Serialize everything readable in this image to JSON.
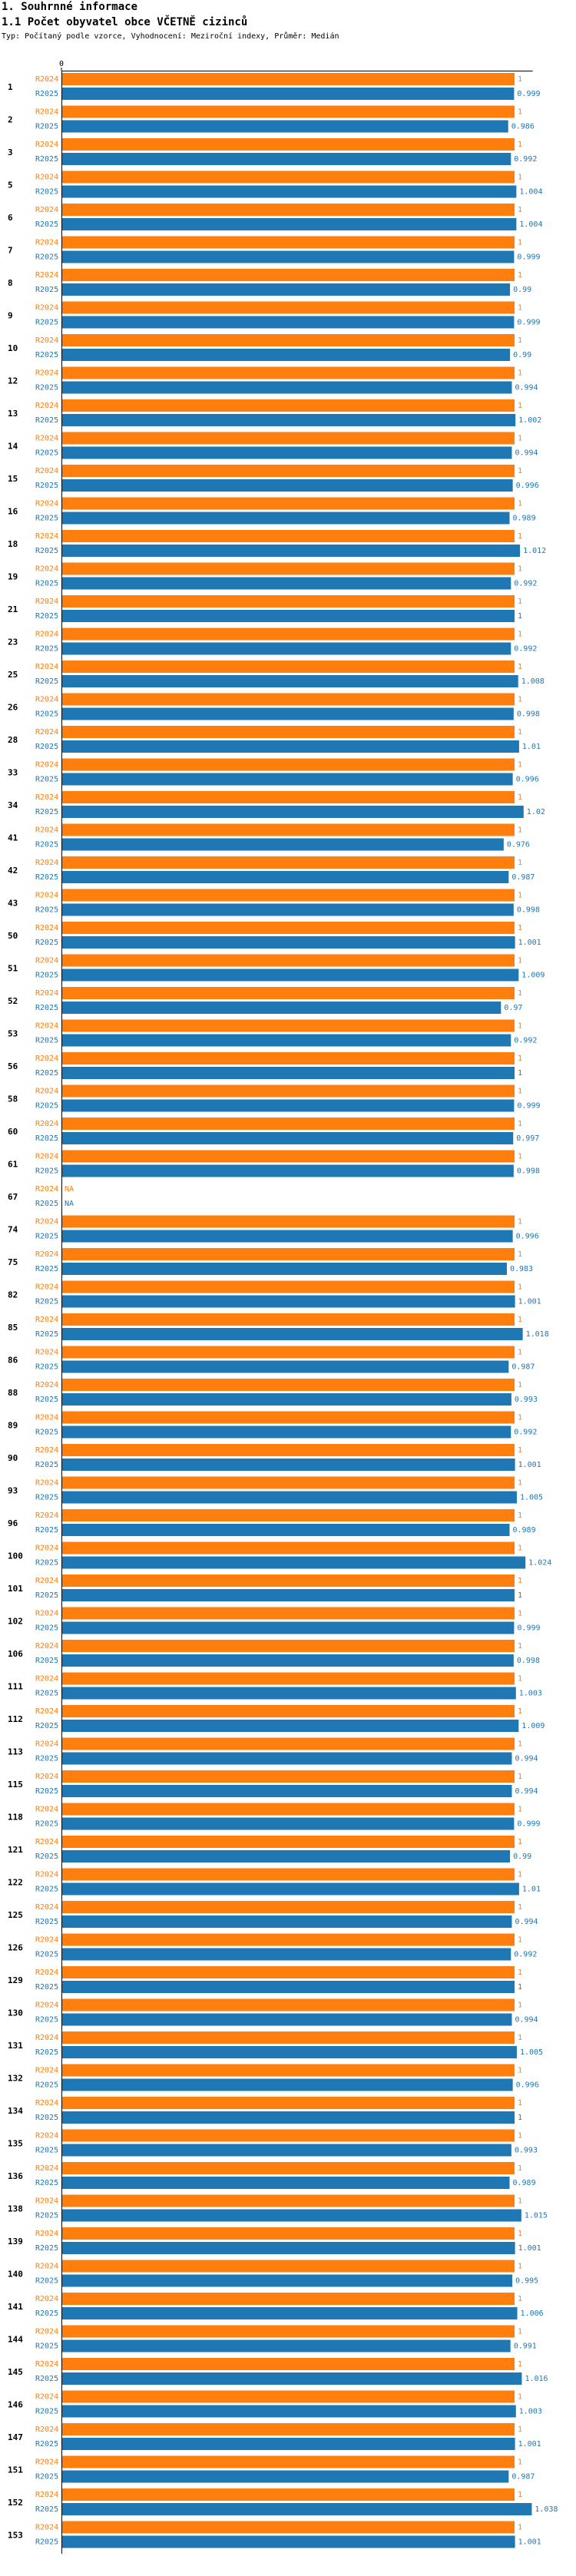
{
  "header": {
    "section": "1. Souhrnné informace",
    "title": "1.1 Počet obyvatel obce VČETNĚ cizinců",
    "subtitle": "Typ: Počítaný podle vzorce, Vyhodnocení: Meziroční indexy, Průměr: Medián"
  },
  "colors": {
    "r2024": "#ff7f0e",
    "r2025": "#1f77b4"
  },
  "chart_data": {
    "type": "bar",
    "orientation": "horizontal",
    "title": "1.1 Počet obyvatel obce VČETNĚ cizinců",
    "x_tick_labels": [
      "0"
    ],
    "xlim": [
      0,
      1.04
    ],
    "series_names": [
      "R2024",
      "R2025"
    ],
    "groups": [
      {
        "label": "1",
        "r2024": 1,
        "r2025": 0.999,
        "r2024_text": "1",
        "r2025_text": "0.999"
      },
      {
        "label": "2",
        "r2024": 1,
        "r2025": 0.986,
        "r2024_text": "1",
        "r2025_text": "0.986"
      },
      {
        "label": "3",
        "r2024": 1,
        "r2025": 0.992,
        "r2024_text": "1",
        "r2025_text": "0.992"
      },
      {
        "label": "5",
        "r2024": 1,
        "r2025": 1.004,
        "r2024_text": "1",
        "r2025_text": "1.004"
      },
      {
        "label": "6",
        "r2024": 1,
        "r2025": 1.004,
        "r2024_text": "1",
        "r2025_text": "1.004"
      },
      {
        "label": "7",
        "r2024": 1,
        "r2025": 0.999,
        "r2024_text": "1",
        "r2025_text": "0.999"
      },
      {
        "label": "8",
        "r2024": 1,
        "r2025": 0.99,
        "r2024_text": "1",
        "r2025_text": "0.99"
      },
      {
        "label": "9",
        "r2024": 1,
        "r2025": 0.999,
        "r2024_text": "1",
        "r2025_text": "0.999"
      },
      {
        "label": "10",
        "r2024": 1,
        "r2025": 0.99,
        "r2024_text": "1",
        "r2025_text": "0.99"
      },
      {
        "label": "12",
        "r2024": 1,
        "r2025": 0.994,
        "r2024_text": "1",
        "r2025_text": "0.994"
      },
      {
        "label": "13",
        "r2024": 1,
        "r2025": 1.002,
        "r2024_text": "1",
        "r2025_text": "1.002"
      },
      {
        "label": "14",
        "r2024": 1,
        "r2025": 0.994,
        "r2024_text": "1",
        "r2025_text": "0.994"
      },
      {
        "label": "15",
        "r2024": 1,
        "r2025": 0.996,
        "r2024_text": "1",
        "r2025_text": "0.996"
      },
      {
        "label": "16",
        "r2024": 1,
        "r2025": 0.989,
        "r2024_text": "1",
        "r2025_text": "0.989"
      },
      {
        "label": "18",
        "r2024": 1,
        "r2025": 1.012,
        "r2024_text": "1",
        "r2025_text": "1.012"
      },
      {
        "label": "19",
        "r2024": 1,
        "r2025": 0.992,
        "r2024_text": "1",
        "r2025_text": "0.992"
      },
      {
        "label": "21",
        "r2024": 1,
        "r2025": 1,
        "r2024_text": "1",
        "r2025_text": "1"
      },
      {
        "label": "23",
        "r2024": 1,
        "r2025": 0.992,
        "r2024_text": "1",
        "r2025_text": "0.992"
      },
      {
        "label": "25",
        "r2024": 1,
        "r2025": 1.008,
        "r2024_text": "1",
        "r2025_text": "1.008"
      },
      {
        "label": "26",
        "r2024": 1,
        "r2025": 0.998,
        "r2024_text": "1",
        "r2025_text": "0.998"
      },
      {
        "label": "28",
        "r2024": 1,
        "r2025": 1.01,
        "r2024_text": "1",
        "r2025_text": "1.01"
      },
      {
        "label": "33",
        "r2024": 1,
        "r2025": 0.996,
        "r2024_text": "1",
        "r2025_text": "0.996"
      },
      {
        "label": "34",
        "r2024": 1,
        "r2025": 1.02,
        "r2024_text": "1",
        "r2025_text": "1.02"
      },
      {
        "label": "41",
        "r2024": 1,
        "r2025": 0.976,
        "r2024_text": "1",
        "r2025_text": "0.976"
      },
      {
        "label": "42",
        "r2024": 1,
        "r2025": 0.987,
        "r2024_text": "1",
        "r2025_text": "0.987"
      },
      {
        "label": "43",
        "r2024": 1,
        "r2025": 0.998,
        "r2024_text": "1",
        "r2025_text": "0.998"
      },
      {
        "label": "50",
        "r2024": 1,
        "r2025": 1.001,
        "r2024_text": "1",
        "r2025_text": "1.001"
      },
      {
        "label": "51",
        "r2024": 1,
        "r2025": 1.009,
        "r2024_text": "1",
        "r2025_text": "1.009"
      },
      {
        "label": "52",
        "r2024": 1,
        "r2025": 0.97,
        "r2024_text": "1",
        "r2025_text": "0.97"
      },
      {
        "label": "53",
        "r2024": 1,
        "r2025": 0.992,
        "r2024_text": "1",
        "r2025_text": "0.992"
      },
      {
        "label": "56",
        "r2024": 1,
        "r2025": 1,
        "r2024_text": "1",
        "r2025_text": "1"
      },
      {
        "label": "58",
        "r2024": 1,
        "r2025": 0.999,
        "r2024_text": "1",
        "r2025_text": "0.999"
      },
      {
        "label": "60",
        "r2024": 1,
        "r2025": 0.997,
        "r2024_text": "1",
        "r2025_text": "0.997"
      },
      {
        "label": "61",
        "r2024": 1,
        "r2025": 0.998,
        "r2024_text": "1",
        "r2025_text": "0.998"
      },
      {
        "label": "67",
        "r2024": null,
        "r2025": null,
        "r2024_text": "NA",
        "r2025_text": "NA"
      },
      {
        "label": "74",
        "r2024": 1,
        "r2025": 0.996,
        "r2024_text": "1",
        "r2025_text": "0.996"
      },
      {
        "label": "75",
        "r2024": 1,
        "r2025": 0.983,
        "r2024_text": "1",
        "r2025_text": "0.983"
      },
      {
        "label": "82",
        "r2024": 1,
        "r2025": 1.001,
        "r2024_text": "1",
        "r2025_text": "1.001"
      },
      {
        "label": "85",
        "r2024": 1,
        "r2025": 1.018,
        "r2024_text": "1",
        "r2025_text": "1.018"
      },
      {
        "label": "86",
        "r2024": 1,
        "r2025": 0.987,
        "r2024_text": "1",
        "r2025_text": "0.987"
      },
      {
        "label": "88",
        "r2024": 1,
        "r2025": 0.993,
        "r2024_text": "1",
        "r2025_text": "0.993"
      },
      {
        "label": "89",
        "r2024": 1,
        "r2025": 0.992,
        "r2024_text": "1",
        "r2025_text": "0.992"
      },
      {
        "label": "90",
        "r2024": 1,
        "r2025": 1.001,
        "r2024_text": "1",
        "r2025_text": "1.001"
      },
      {
        "label": "93",
        "r2024": 1,
        "r2025": 1.005,
        "r2024_text": "1",
        "r2025_text": "1.005"
      },
      {
        "label": "96",
        "r2024": 1,
        "r2025": 0.989,
        "r2024_text": "1",
        "r2025_text": "0.989"
      },
      {
        "label": "100",
        "r2024": 1,
        "r2025": 1.024,
        "r2024_text": "1",
        "r2025_text": "1.024"
      },
      {
        "label": "101",
        "r2024": 1,
        "r2025": 1,
        "r2024_text": "1",
        "r2025_text": "1"
      },
      {
        "label": "102",
        "r2024": 1,
        "r2025": 0.999,
        "r2024_text": "1",
        "r2025_text": "0.999"
      },
      {
        "label": "106",
        "r2024": 1,
        "r2025": 0.998,
        "r2024_text": "1",
        "r2025_text": "0.998"
      },
      {
        "label": "111",
        "r2024": 1,
        "r2025": 1.003,
        "r2024_text": "1",
        "r2025_text": "1.003"
      },
      {
        "label": "112",
        "r2024": 1,
        "r2025": 1.009,
        "r2024_text": "1",
        "r2025_text": "1.009"
      },
      {
        "label": "113",
        "r2024": 1,
        "r2025": 0.994,
        "r2024_text": "1",
        "r2025_text": "0.994"
      },
      {
        "label": "115",
        "r2024": 1,
        "r2025": 0.994,
        "r2024_text": "1",
        "r2025_text": "0.994"
      },
      {
        "label": "118",
        "r2024": 1,
        "r2025": 0.999,
        "r2024_text": "1",
        "r2025_text": "0.999"
      },
      {
        "label": "121",
        "r2024": 1,
        "r2025": 0.99,
        "r2024_text": "1",
        "r2025_text": "0.99"
      },
      {
        "label": "122",
        "r2024": 1,
        "r2025": 1.01,
        "r2024_text": "1",
        "r2025_text": "1.01"
      },
      {
        "label": "125",
        "r2024": 1,
        "r2025": 0.994,
        "r2024_text": "1",
        "r2025_text": "0.994"
      },
      {
        "label": "126",
        "r2024": 1,
        "r2025": 0.992,
        "r2024_text": "1",
        "r2025_text": "0.992"
      },
      {
        "label": "129",
        "r2024": 1,
        "r2025": 1,
        "r2024_text": "1",
        "r2025_text": "1"
      },
      {
        "label": "130",
        "r2024": 1,
        "r2025": 0.994,
        "r2024_text": "1",
        "r2025_text": "0.994"
      },
      {
        "label": "131",
        "r2024": 1,
        "r2025": 1.005,
        "r2024_text": "1",
        "r2025_text": "1.005"
      },
      {
        "label": "132",
        "r2024": 1,
        "r2025": 0.996,
        "r2024_text": "1",
        "r2025_text": "0.996"
      },
      {
        "label": "134",
        "r2024": 1,
        "r2025": 1,
        "r2024_text": "1",
        "r2025_text": "1"
      },
      {
        "label": "135",
        "r2024": 1,
        "r2025": 0.993,
        "r2024_text": "1",
        "r2025_text": "0.993"
      },
      {
        "label": "136",
        "r2024": 1,
        "r2025": 0.989,
        "r2024_text": "1",
        "r2025_text": "0.989"
      },
      {
        "label": "138",
        "r2024": 1,
        "r2025": 1.015,
        "r2024_text": "1",
        "r2025_text": "1.015"
      },
      {
        "label": "139",
        "r2024": 1,
        "r2025": 1.001,
        "r2024_text": "1",
        "r2025_text": "1.001"
      },
      {
        "label": "140",
        "r2024": 1,
        "r2025": 0.995,
        "r2024_text": "1",
        "r2025_text": "0.995"
      },
      {
        "label": "141",
        "r2024": 1,
        "r2025": 1.006,
        "r2024_text": "1",
        "r2025_text": "1.006"
      },
      {
        "label": "144",
        "r2024": 1,
        "r2025": 0.991,
        "r2024_text": "1",
        "r2025_text": "0.991"
      },
      {
        "label": "145",
        "r2024": 1,
        "r2025": 1.016,
        "r2024_text": "1",
        "r2025_text": "1.016"
      },
      {
        "label": "146",
        "r2024": 1,
        "r2025": 1.003,
        "r2024_text": "1",
        "r2025_text": "1.003"
      },
      {
        "label": "147",
        "r2024": 1,
        "r2025": 1.001,
        "r2024_text": "1",
        "r2025_text": "1.001"
      },
      {
        "label": "151",
        "r2024": 1,
        "r2025": 0.987,
        "r2024_text": "1",
        "r2025_text": "0.987"
      },
      {
        "label": "152",
        "r2024": 1,
        "r2025": 1.038,
        "r2024_text": "1",
        "r2025_text": "1.038"
      },
      {
        "label": "153",
        "r2024": 1,
        "r2025": 1.001,
        "r2024_text": "1",
        "r2025_text": "1.001"
      }
    ]
  }
}
